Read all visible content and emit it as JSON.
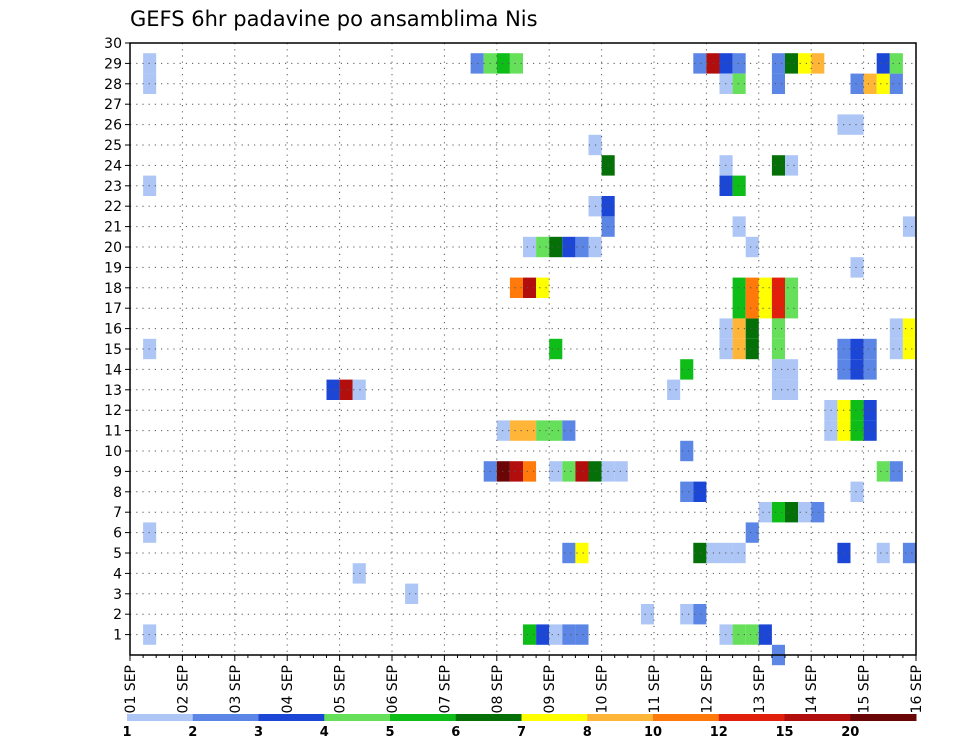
{
  "chart_data": {
    "type": "heatmap",
    "title": "GEFS 6hr padavine po ansamblima Nis",
    "xlabel": "",
    "ylabel": "",
    "x_ticks": [
      "01 SEP",
      "02 SEP",
      "03 SEP",
      "04 SEP",
      "05 SEP",
      "06 SEP",
      "07 SEP",
      "08 SEP",
      "09 SEP",
      "10 SEP",
      "11 SEP",
      "12 SEP",
      "13 SEP",
      "14 SEP",
      "15 SEP",
      "16 SEP"
    ],
    "y_ticks": [
      "1",
      "2",
      "3",
      "4",
      "5",
      "6",
      "7",
      "8",
      "9",
      "10",
      "11",
      "12",
      "13",
      "14",
      "15",
      "16",
      "17",
      "18",
      "19",
      "20",
      "21",
      "22",
      "23",
      "24",
      "25",
      "26",
      "27",
      "28",
      "29",
      "30"
    ],
    "x_range_days": [
      0,
      15
    ],
    "y_range": [
      0,
      30
    ],
    "time_step_hours": 6,
    "grid": "dotted",
    "colorbar": {
      "placement": "bottom",
      "labels": [
        "1",
        "2",
        "3",
        "4",
        "5",
        "6",
        "7",
        "8",
        "10",
        "12",
        "15",
        "20"
      ],
      "colors": [
        "#aec6f5",
        "#5b86e6",
        "#1c46d6",
        "#66e05a",
        "#0ebd18",
        "#067008",
        "#ffff00",
        "#ffb538",
        "#ff7a0a",
        "#e0200a",
        "#b20e0e",
        "#6a0606"
      ]
    },
    "cells": [
      [
        0.25,
        28,
        1
      ],
      [
        0.25,
        29,
        1
      ],
      [
        0.25,
        23,
        1
      ],
      [
        0.25,
        15,
        1
      ],
      [
        0.25,
        6,
        1
      ],
      [
        0.25,
        1,
        1
      ],
      [
        3.75,
        13,
        3
      ],
      [
        4.0,
        13,
        11
      ],
      [
        4.25,
        13,
        1
      ],
      [
        4.25,
        4,
        1
      ],
      [
        5.25,
        3,
        1
      ],
      [
        6.5,
        29,
        2
      ],
      [
        6.75,
        29,
        4
      ],
      [
        7.0,
        29,
        5
      ],
      [
        7.25,
        29,
        4
      ],
      [
        6.75,
        9,
        2
      ],
      [
        7.0,
        9,
        12
      ],
      [
        7.25,
        9,
        11
      ],
      [
        7.5,
        9,
        9
      ],
      [
        7.0,
        11,
        1
      ],
      [
        7.25,
        11,
        8
      ],
      [
        7.5,
        11,
        8
      ],
      [
        7.75,
        11,
        4
      ],
      [
        8.0,
        11,
        4
      ],
      [
        7.25,
        18,
        9
      ],
      [
        7.5,
        18,
        11
      ],
      [
        7.75,
        18,
        7
      ],
      [
        7.5,
        20,
        1
      ],
      [
        7.75,
        20,
        4
      ],
      [
        8.0,
        20,
        6
      ],
      [
        8.25,
        20,
        3
      ],
      [
        8.5,
        20,
        2
      ],
      [
        8.75,
        20,
        1
      ],
      [
        7.5,
        1,
        5
      ],
      [
        7.75,
        1,
        3
      ],
      [
        8.0,
        1,
        1
      ],
      [
        8.25,
        1,
        2
      ],
      [
        8.5,
        1,
        2
      ],
      [
        8.0,
        15,
        5
      ],
      [
        8.25,
        11,
        2
      ],
      [
        8.0,
        9,
        1
      ],
      [
        8.25,
        9,
        4
      ],
      [
        8.5,
        9,
        11
      ],
      [
        8.75,
        9,
        6
      ],
      [
        9.0,
        9,
        1
      ],
      [
        9.25,
        9,
        1
      ],
      [
        8.25,
        5,
        2
      ],
      [
        8.5,
        5,
        7
      ],
      [
        8.75,
        25,
        1
      ],
      [
        9.0,
        24,
        6
      ],
      [
        8.75,
        22,
        1
      ],
      [
        9.0,
        22,
        3
      ],
      [
        9.0,
        21,
        2
      ],
      [
        10.25,
        13,
        1
      ],
      [
        10.5,
        14,
        5
      ],
      [
        10.5,
        10,
        2
      ],
      [
        10.5,
        8,
        2
      ],
      [
        10.75,
        8,
        3
      ],
      [
        10.5,
        2,
        1
      ],
      [
        10.75,
        2,
        2
      ],
      [
        9.75,
        2,
        1
      ],
      [
        10.75,
        5,
        6
      ],
      [
        11.0,
        5,
        1
      ],
      [
        11.25,
        5,
        1
      ],
      [
        11.5,
        5,
        1
      ],
      [
        10.75,
        29,
        2
      ],
      [
        11.0,
        29,
        11
      ],
      [
        11.25,
        29,
        3
      ],
      [
        11.5,
        29,
        2
      ],
      [
        11.25,
        28,
        1
      ],
      [
        11.5,
        28,
        4
      ],
      [
        11.25,
        24,
        1
      ],
      [
        11.25,
        23,
        3
      ],
      [
        11.5,
        23,
        5
      ],
      [
        11.5,
        21,
        1
      ],
      [
        11.75,
        20,
        1
      ],
      [
        11.25,
        16,
        1
      ],
      [
        11.5,
        16,
        8
      ],
      [
        11.75,
        16,
        6
      ],
      [
        11.25,
        15,
        1
      ],
      [
        11.5,
        15,
        8
      ],
      [
        11.75,
        15,
        6
      ],
      [
        11.5,
        18,
        5
      ],
      [
        11.75,
        18,
        9
      ],
      [
        12.0,
        18,
        7
      ],
      [
        12.25,
        18,
        10
      ],
      [
        12.5,
        18,
        4
      ],
      [
        11.5,
        17,
        5
      ],
      [
        11.75,
        17,
        9
      ],
      [
        12.0,
        17,
        7
      ],
      [
        12.25,
        17,
        10
      ],
      [
        12.5,
        17,
        4
      ],
      [
        12.25,
        16,
        4
      ],
      [
        12.25,
        15,
        4
      ],
      [
        11.25,
        1,
        1
      ],
      [
        11.5,
        1,
        4
      ],
      [
        11.75,
        1,
        4
      ],
      [
        12.0,
        1,
        3
      ],
      [
        12.25,
        0,
        2
      ],
      [
        11.75,
        6,
        2
      ],
      [
        12.0,
        7,
        1
      ],
      [
        12.25,
        7,
        5
      ],
      [
        12.5,
        7,
        6
      ],
      [
        12.75,
        7,
        1
      ],
      [
        13.0,
        7,
        2
      ],
      [
        12.25,
        13,
        1
      ],
      [
        12.5,
        13,
        1
      ],
      [
        12.25,
        14,
        1
      ],
      [
        12.5,
        14,
        1
      ],
      [
        12.25,
        24,
        6
      ],
      [
        12.5,
        24,
        1
      ],
      [
        12.25,
        28,
        2
      ],
      [
        12.25,
        29,
        2
      ],
      [
        12.5,
        29,
        6
      ],
      [
        12.75,
        29,
        7
      ],
      [
        13.0,
        29,
        8
      ],
      [
        13.5,
        26,
        1
      ],
      [
        13.75,
        26,
        1
      ],
      [
        13.25,
        12,
        1
      ],
      [
        13.5,
        12,
        7
      ],
      [
        13.75,
        12,
        5
      ],
      [
        14.0,
        12,
        3
      ],
      [
        13.25,
        11,
        1
      ],
      [
        13.5,
        11,
        7
      ],
      [
        13.75,
        11,
        5
      ],
      [
        14.0,
        11,
        3
      ],
      [
        13.5,
        15,
        2
      ],
      [
        13.75,
        15,
        3
      ],
      [
        14.0,
        15,
        2
      ],
      [
        13.5,
        14,
        2
      ],
      [
        13.75,
        14,
        3
      ],
      [
        14.0,
        14,
        2
      ],
      [
        13.75,
        19,
        1
      ],
      [
        13.75,
        8,
        1
      ],
      [
        13.5,
        5,
        3
      ],
      [
        14.25,
        5,
        1
      ],
      [
        14.75,
        5,
        2
      ],
      [
        14.25,
        9,
        4
      ],
      [
        14.5,
        9,
        2
      ],
      [
        13.75,
        28,
        2
      ],
      [
        14.0,
        28,
        8
      ],
      [
        14.25,
        28,
        7
      ],
      [
        14.5,
        28,
        2
      ],
      [
        14.25,
        29,
        3
      ],
      [
        14.5,
        29,
        4
      ],
      [
        14.5,
        16,
        1
      ],
      [
        14.75,
        16,
        7
      ],
      [
        14.5,
        15,
        1
      ],
      [
        14.75,
        15,
        7
      ],
      [
        14.75,
        21,
        1
      ]
    ]
  }
}
